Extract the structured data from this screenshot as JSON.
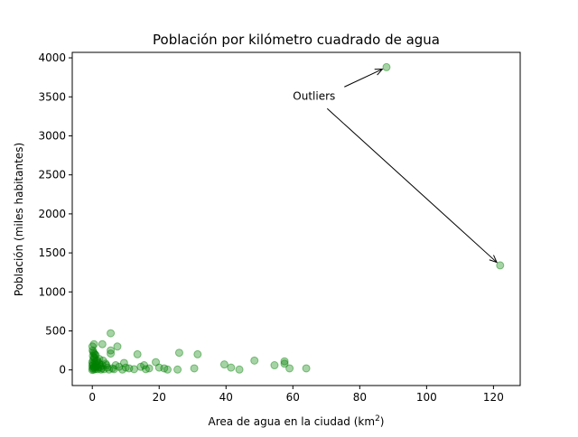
{
  "chart_data": {
    "type": "scatter",
    "title": "Población por kilómetro cuadrado de agua",
    "xlabel": "Area de agua en la ciudad (km",
    "xlabel_sup": "2",
    "xlabel_end": ")",
    "ylabel": "Población (miles habitantes)",
    "xlim": [
      -6,
      128
    ],
    "ylim": [
      -200,
      4070
    ],
    "xticks": [
      0,
      20,
      40,
      60,
      80,
      100,
      120
    ],
    "yticks": [
      0,
      500,
      1000,
      1500,
      2000,
      2500,
      3000,
      3500,
      4000
    ],
    "grid": false,
    "color": "#008000",
    "alpha": 0.35,
    "annotation": {
      "text": "Outliers",
      "x": 60,
      "y": 3500,
      "targets": [
        [
          88,
          3880
        ],
        [
          122,
          1340
        ]
      ]
    },
    "points": [
      [
        88,
        3880
      ],
      [
        122,
        1340
      ],
      [
        5.5,
        470
      ],
      [
        0.5,
        330
      ],
      [
        3,
        330
      ],
      [
        7.5,
        300
      ],
      [
        5.5,
        250
      ],
      [
        5.5,
        210
      ],
      [
        0.5,
        210
      ],
      [
        1,
        190
      ],
      [
        13.5,
        200
      ],
      [
        26,
        220
      ],
      [
        31.5,
        200
      ],
      [
        48.5,
        120
      ],
      [
        57.5,
        110
      ],
      [
        57.5,
        80
      ],
      [
        39.5,
        70
      ],
      [
        54.5,
        60
      ],
      [
        19,
        100
      ],
      [
        9.5,
        90
      ],
      [
        15.5,
        60
      ],
      [
        14.5,
        40
      ],
      [
        17,
        20
      ],
      [
        12.5,
        10
      ],
      [
        20,
        30
      ],
      [
        21.5,
        20
      ],
      [
        22.5,
        5
      ],
      [
        25.5,
        5
      ],
      [
        30.5,
        20
      ],
      [
        41.5,
        30
      ],
      [
        44,
        5
      ],
      [
        59,
        20
      ],
      [
        64,
        20
      ],
      [
        7,
        60
      ],
      [
        8,
        40
      ],
      [
        6,
        20
      ],
      [
        4,
        80
      ],
      [
        3,
        60
      ],
      [
        2.5,
        40
      ],
      [
        4.5,
        30
      ],
      [
        3.5,
        10
      ],
      [
        1.5,
        120
      ],
      [
        2,
        90
      ],
      [
        1,
        70
      ],
      [
        1.5,
        50
      ],
      [
        0.5,
        160
      ],
      [
        0.3,
        130
      ],
      [
        0.8,
        100
      ],
      [
        0.2,
        60
      ],
      [
        0.6,
        40
      ],
      [
        0.1,
        20
      ],
      [
        0.4,
        5
      ],
      [
        0,
        100
      ],
      [
        0,
        50
      ],
      [
        0,
        0
      ],
      [
        0.2,
        180
      ],
      [
        0.7,
        150
      ],
      [
        1.2,
        110
      ],
      [
        1.8,
        30
      ],
      [
        2.2,
        70
      ],
      [
        2.8,
        20
      ],
      [
        0.9,
        10
      ],
      [
        0.3,
        230
      ],
      [
        0.1,
        250
      ],
      [
        10,
        30
      ],
      [
        16,
        10
      ],
      [
        5,
        5
      ],
      [
        6.5,
        10
      ],
      [
        9,
        5
      ],
      [
        11,
        20
      ],
      [
        1.6,
        10
      ],
      [
        2.6,
        5
      ],
      [
        0.05,
        300
      ],
      [
        0.15,
        80
      ],
      [
        0.45,
        30
      ],
      [
        1.1,
        40
      ],
      [
        3.2,
        120
      ],
      [
        4.2,
        60
      ],
      [
        2.1,
        140
      ],
      [
        0.75,
        200
      ]
    ]
  }
}
